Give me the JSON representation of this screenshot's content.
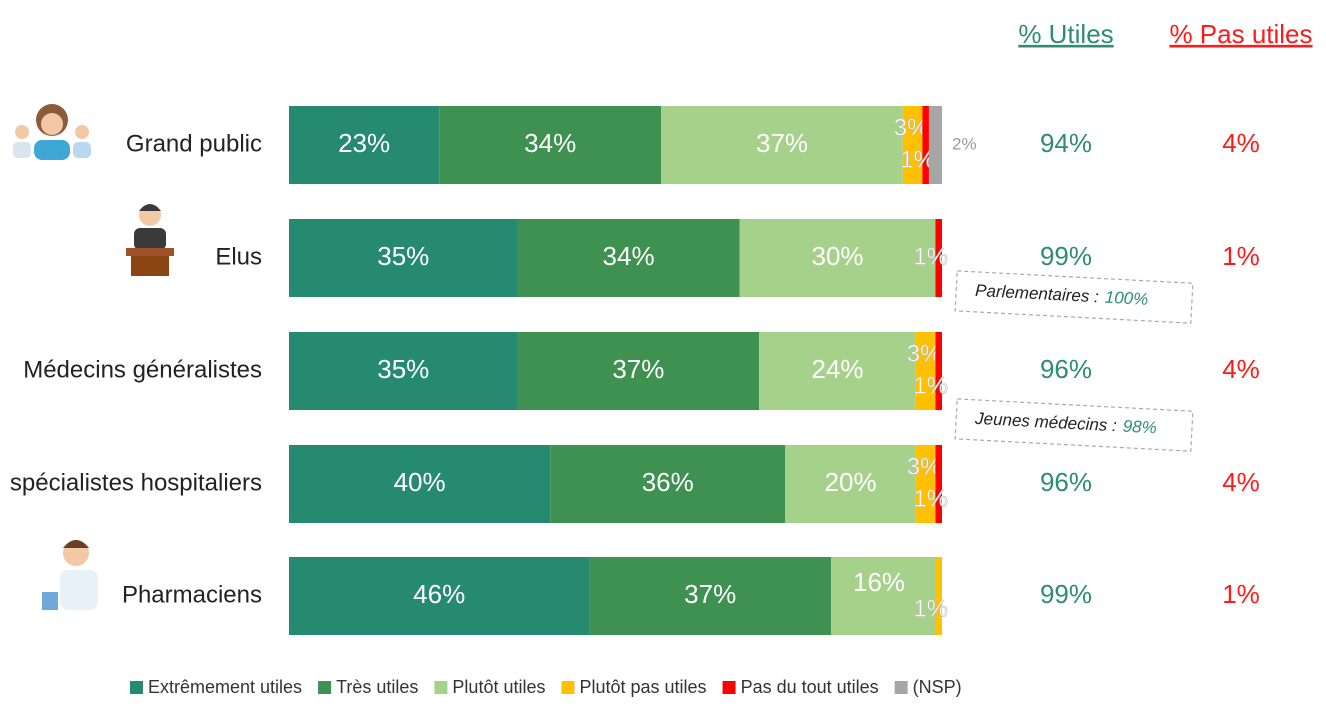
{
  "chart_data": {
    "type": "stacked_bar_horizontal",
    "categories": [
      "Grand public",
      "Elus",
      "Médecins généralistes",
      "spécialistes hospitaliers",
      "Pharmaciens"
    ],
    "xlim": [
      0,
      100
    ],
    "series": [
      {
        "name": "Extrêmement utiles",
        "color": "#268a70",
        "values": [
          23,
          35,
          35,
          40,
          46
        ],
        "value_labels": [
          "23%",
          "35%",
          "35%",
          "40%",
          "46%"
        ]
      },
      {
        "name": "Très utiles",
        "color": "#3e9150",
        "values": [
          34,
          34,
          37,
          36,
          37
        ],
        "value_labels": [
          "34%",
          "34%",
          "37%",
          "36%",
          "37%"
        ]
      },
      {
        "name": "Plutôt utiles",
        "color": "#a5d18b",
        "values": [
          37,
          30,
          24,
          20,
          16
        ],
        "value_labels": [
          "37%",
          "30%",
          "24%",
          "20%",
          "16%"
        ]
      },
      {
        "name": "Plutôt pas utiles",
        "color": "#ffc000",
        "values": [
          3,
          null,
          3,
          3,
          1
        ],
        "value_labels": [
          "3%",
          null,
          "3%",
          "3%",
          "1%"
        ]
      },
      {
        "name": "Pas du tout utiles",
        "color": "#ff0000",
        "values": [
          1,
          1,
          1,
          1,
          null
        ],
        "value_labels": [
          "1%",
          "1%",
          "1%",
          "1%",
          null
        ]
      },
      {
        "name": "(NSP)",
        "color": "#a6a6a6",
        "values": [
          2,
          null,
          null,
          null,
          null
        ],
        "value_labels": [
          "2%",
          null,
          null,
          null,
          null
        ]
      }
    ],
    "summary_columns": [
      {
        "name": "% Utiles",
        "color": "#2e8b74",
        "values": [
          94,
          99,
          96,
          96,
          99
        ],
        "value_labels": [
          "94%",
          "99%",
          "96%",
          "96%",
          "99%"
        ]
      },
      {
        "name": "% Pas utiles",
        "color": "#ff1a1a",
        "values": [
          4,
          1,
          4,
          4,
          1
        ],
        "value_labels": [
          "4%",
          "1%",
          "4%",
          "4%",
          "1%"
        ]
      }
    ],
    "annotations": [
      {
        "text": "Parlementaires :",
        "value_label": "100%"
      },
      {
        "text": "Jeunes médecins :",
        "value_label": "98%"
      }
    ]
  }
}
